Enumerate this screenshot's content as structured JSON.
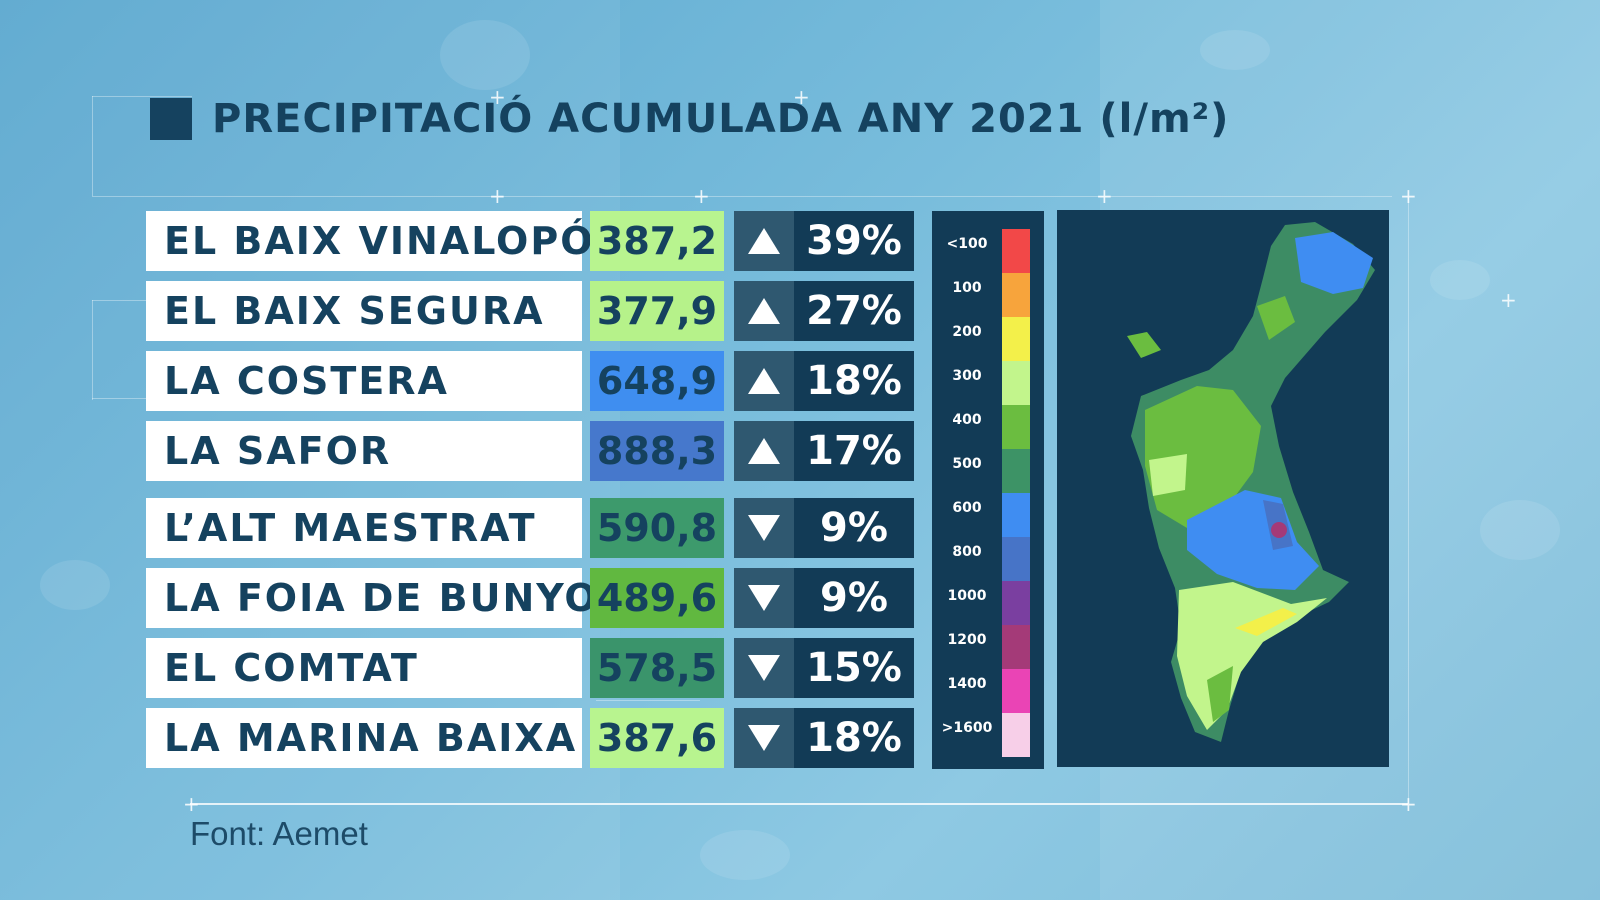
{
  "title": "PRECIPITACIÓ ACUMULADA ANY 2021 (l/m²)",
  "source": "Font: Aemet",
  "rows": [
    {
      "name": "EL BAIX VINALOPÓ",
      "value": "387,2",
      "direction": "up",
      "change": "39%",
      "value_color": "#b8f48f"
    },
    {
      "name": "EL BAIX SEGURA",
      "value": "377,9",
      "direction": "up",
      "change": "27%",
      "value_color": "#b6f28a"
    },
    {
      "name": "LA COSTERA",
      "value": "648,9",
      "direction": "up",
      "change": "18%",
      "value_color": "#3f8ef0"
    },
    {
      "name": "LA SAFOR",
      "value": "888,3",
      "direction": "up",
      "change": "17%",
      "value_color": "#4678cc"
    },
    {
      "name": "L’ALT MAESTRAT",
      "value": "590,8",
      "direction": "down",
      "change": "9%",
      "value_color": "#3d9a6c"
    },
    {
      "name": "LA FOIA DE BUNYOL",
      "value": "489,6",
      "direction": "down",
      "change": "9%",
      "value_color": "#61b840"
    },
    {
      "name": "EL COMTAT",
      "value": "578,5",
      "direction": "down",
      "change": "15%",
      "value_color": "#3a946b"
    },
    {
      "name": "LA MARINA BAIXA",
      "value": "387,6",
      "direction": "down",
      "change": "18%",
      "value_color": "#b8f48f"
    }
  ],
  "legend": [
    {
      "label": "<100",
      "color": "#f24848"
    },
    {
      "label": "100",
      "color": "#f7a43c"
    },
    {
      "label": "200",
      "color": "#f3f04a"
    },
    {
      "label": "300",
      "color": "#c2f58c"
    },
    {
      "label": "400",
      "color": "#6bbd40"
    },
    {
      "label": "500",
      "color": "#3d9366"
    },
    {
      "label": "600",
      "color": "#3f8df2"
    },
    {
      "label": "800",
      "color": "#4774c7"
    },
    {
      "label": "1000",
      "color": "#7a3fa0"
    },
    {
      "label": "1200",
      "color": "#a43a78"
    },
    {
      "label": "1400",
      "color": "#ea44b5"
    },
    {
      "label": ">1600",
      "color": "#f7cfe8"
    }
  ]
}
